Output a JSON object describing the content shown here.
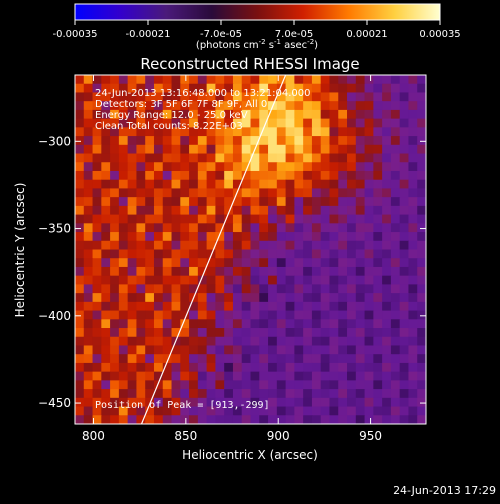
{
  "colorbar": {
    "ticks": [
      "-0.00035",
      "-0.00021",
      "-7.0e-05",
      "7.0e-05",
      "0.00021",
      "0.00035"
    ],
    "units_label": "(photons cm",
    "units_sup1": "-2",
    "units_mid": " s",
    "units_sup2": "-1",
    "units_end": " asec",
    "units_sup3": "-2",
    "units_close": ")",
    "colors": [
      "#0000ff",
      "#3300cc",
      "#4a1a7a",
      "#2a0a3a",
      "#7a1010",
      "#d02000",
      "#ff7a00",
      "#ffd040",
      "#ffffd0"
    ]
  },
  "chart_data": {
    "type": "heatmap",
    "title": "Reconstructed RHESSI Image",
    "xlabel": "Heliocentric X (arcsec)",
    "ylabel": "Heliocentric Y (arcsec)",
    "xlim": [
      790,
      980
    ],
    "ylim": [
      -462,
      -262
    ],
    "xticks": [
      800,
      850,
      900,
      950
    ],
    "yticks": [
      -300,
      -350,
      -400,
      -450
    ],
    "annotations": [
      "24-Jun-2013 13:16:48.000 to 13:21:04.000",
      "Detectors: 3F 5F 6F 7F 8F 9F, All 0",
      "Energy Range: 12.0 - 25.0 keV",
      "Clean    Total counts: 8.22E+03"
    ],
    "peak_label": "Position of Peak = [913,-299]",
    "peak": [
      913,
      -299
    ],
    "limb_line": [
      [
        826,
        -462
      ],
      [
        904,
        -262
      ]
    ]
  },
  "footer": {
    "timestamp": "24-Jun-2013 17:29"
  }
}
